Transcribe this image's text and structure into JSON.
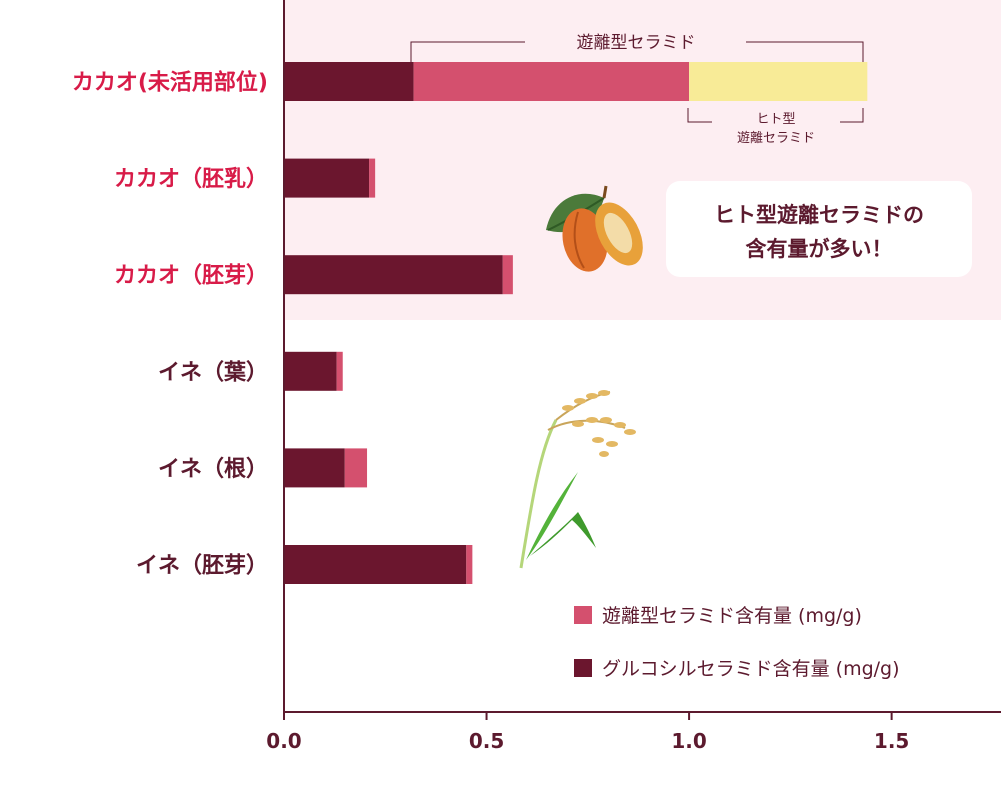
{
  "chart_data": {
    "type": "bar",
    "orientation": "horizontal",
    "stacked": true,
    "categories": [
      {
        "label": "カカオ(未活用部位)",
        "color": "#d81b48"
      },
      {
        "label": "カカオ（胚乳）",
        "color": "#d81b48"
      },
      {
        "label": "カカオ（胚芽）",
        "color": "#d81b48"
      },
      {
        "label": "イネ（葉）",
        "color": "#5c1a2e"
      },
      {
        "label": "イネ（根）",
        "color": "#5c1a2e"
      },
      {
        "label": "イネ（胚芽）",
        "color": "#5c1a2e"
      }
    ],
    "series": [
      {
        "name": "グルコシルセラミド含有量 (mg/g)",
        "color": "#6b162e",
        "values": [
          0.32,
          0.21,
          0.54,
          0.13,
          0.15,
          0.45
        ]
      },
      {
        "name": "遊離型セラミド含有量 (mg/g)",
        "color": "#d4506e",
        "values": [
          0.68,
          0.015,
          0.025,
          0.015,
          0.055,
          0.015
        ]
      },
      {
        "name": "ヒト型遊離セラミド",
        "color": "#f8eb97",
        "values": [
          0.44,
          0,
          0,
          0,
          0,
          0
        ]
      }
    ],
    "xlim": [
      0,
      1.77
    ],
    "xticks": [
      "0.0",
      "0.5",
      "1.0",
      "1.5"
    ],
    "xtick_values": [
      0,
      0.5,
      1.0,
      1.5
    ],
    "legend_placement": "bottom-right",
    "legend": [
      {
        "label": "遊離型セラミド含有量 (mg/g)",
        "color": "#d4506e"
      },
      {
        "label": "グルコシルセラミド含有量 (mg/g)",
        "color": "#6b162e"
      }
    ],
    "annotations": {
      "free_ceramide_bracket": "遊離型セラミド",
      "human_type_line1": "ヒト型",
      "human_type_line2": "遊離セラミド",
      "callout_line1": "ヒト型遊離セラミドの",
      "callout_line2": "含有量が多い！"
    },
    "colors": {
      "highlight_background": "#fdeef2",
      "axis": "#5c1a2e"
    },
    "icons": [
      "cacao-pod-icon",
      "rice-plant-icon"
    ]
  }
}
